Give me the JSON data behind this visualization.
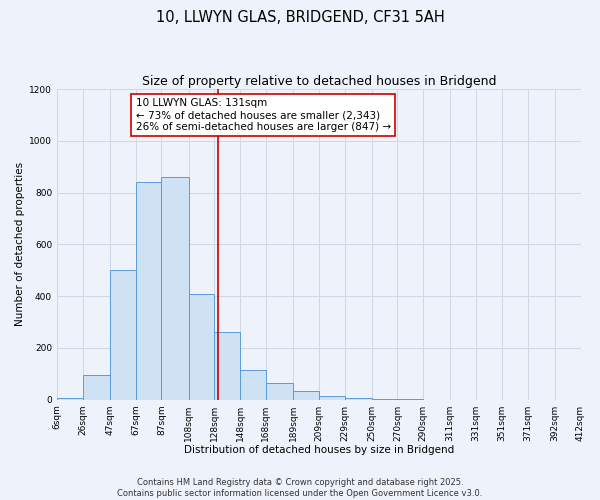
{
  "title": "10, LLWYN GLAS, BRIDGEND, CF31 5AH",
  "subtitle": "Size of property relative to detached houses in Bridgend",
  "xlabel": "Distribution of detached houses by size in Bridgend",
  "ylabel": "Number of detached properties",
  "bar_left_edges": [
    6,
    26,
    47,
    67,
    87,
    108,
    128,
    148,
    168,
    189,
    209,
    229,
    250,
    270,
    290,
    311,
    331,
    351,
    371,
    392
  ],
  "bar_widths": [
    20,
    21,
    20,
    20,
    21,
    20,
    20,
    20,
    21,
    20,
    20,
    21,
    20,
    20,
    21,
    20,
    20,
    20,
    21,
    20
  ],
  "bar_heights": [
    5,
    95,
    500,
    840,
    860,
    410,
    260,
    115,
    65,
    35,
    15,
    5,
    2,
    1,
    0,
    0,
    0,
    0,
    0,
    0
  ],
  "bar_facecolor": "#cfe2f3",
  "bar_edgecolor": "#5b9bd5",
  "vline_x": 131,
  "vline_color": "#cc0000",
  "annotation_title": "10 LLWYN GLAS: 131sqm",
  "annotation_line1": "← 73% of detached houses are smaller (2,343)",
  "annotation_line2": "26% of semi-detached houses are larger (847) →",
  "annotation_box_edgecolor": "#cc0000",
  "annotation_box_facecolor": "#ffffff",
  "xlim": [
    6,
    412
  ],
  "ylim": [
    0,
    1200
  ],
  "yticks": [
    0,
    200,
    400,
    600,
    800,
    1000,
    1200
  ],
  "xtick_labels": [
    "6sqm",
    "26sqm",
    "47sqm",
    "67sqm",
    "87sqm",
    "108sqm",
    "128sqm",
    "148sqm",
    "168sqm",
    "189sqm",
    "209sqm",
    "229sqm",
    "250sqm",
    "270sqm",
    "290sqm",
    "311sqm",
    "331sqm",
    "351sqm",
    "371sqm",
    "392sqm",
    "412sqm"
  ],
  "xtick_positions": [
    6,
    26,
    47,
    67,
    87,
    108,
    128,
    148,
    168,
    189,
    209,
    229,
    250,
    270,
    290,
    311,
    331,
    351,
    371,
    392,
    412
  ],
  "grid_color": "#d0d8e8",
  "bg_color": "#eef2fa",
  "footer_line1": "Contains HM Land Registry data © Crown copyright and database right 2025.",
  "footer_line2": "Contains public sector information licensed under the Open Government Licence v3.0.",
  "title_fontsize": 10.5,
  "subtitle_fontsize": 9,
  "axis_label_fontsize": 7.5,
  "tick_fontsize": 6.5,
  "annotation_fontsize": 7.5,
  "footer_fontsize": 6
}
